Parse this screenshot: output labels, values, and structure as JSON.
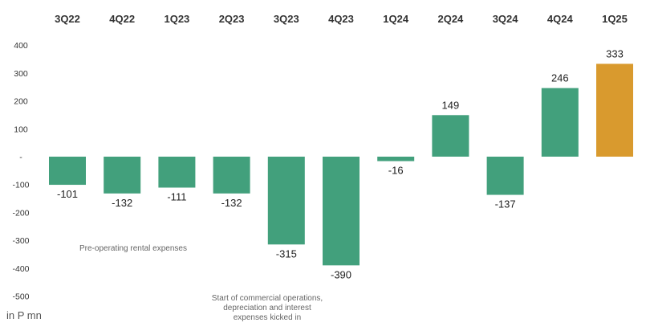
{
  "chart_data": {
    "type": "bar",
    "categories": [
      "3Q22",
      "4Q22",
      "1Q23",
      "2Q23",
      "3Q23",
      "4Q23",
      "1Q24",
      "2Q24",
      "3Q24",
      "4Q24",
      "1Q25"
    ],
    "values": [
      -101,
      -132,
      -111,
      -132,
      -315,
      -390,
      -16,
      149,
      -137,
      246,
      333
    ],
    "data_labels": [
      "-101",
      "-132",
      "-111",
      "-132",
      "-315",
      "-390",
      "-16",
      "149",
      "-137",
      "246",
      "333"
    ],
    "ylim": [
      -500,
      400
    ],
    "yticks": [
      400,
      300,
      200,
      100,
      0,
      -100,
      -200,
      -300,
      -400,
      -500
    ],
    "ytick_labels": [
      "400",
      "300",
      "200",
      "100",
      "-",
      "-100",
      "-200",
      "-300",
      "-400",
      "-500"
    ],
    "grid": false,
    "unit_label": "in P mn",
    "colors": {
      "default": "#42a07c",
      "highlight": "#d99a2e",
      "highlight_category": "1Q25"
    },
    "annotations": [
      {
        "text": [
          "Pre-operating rental expenses"
        ],
        "near_category": "3Q23"
      },
      {
        "text": [
          "Start of commercial operations,",
          "depreciation and interest",
          "expenses kicked in"
        ],
        "near_category": "3Q23"
      }
    ]
  }
}
